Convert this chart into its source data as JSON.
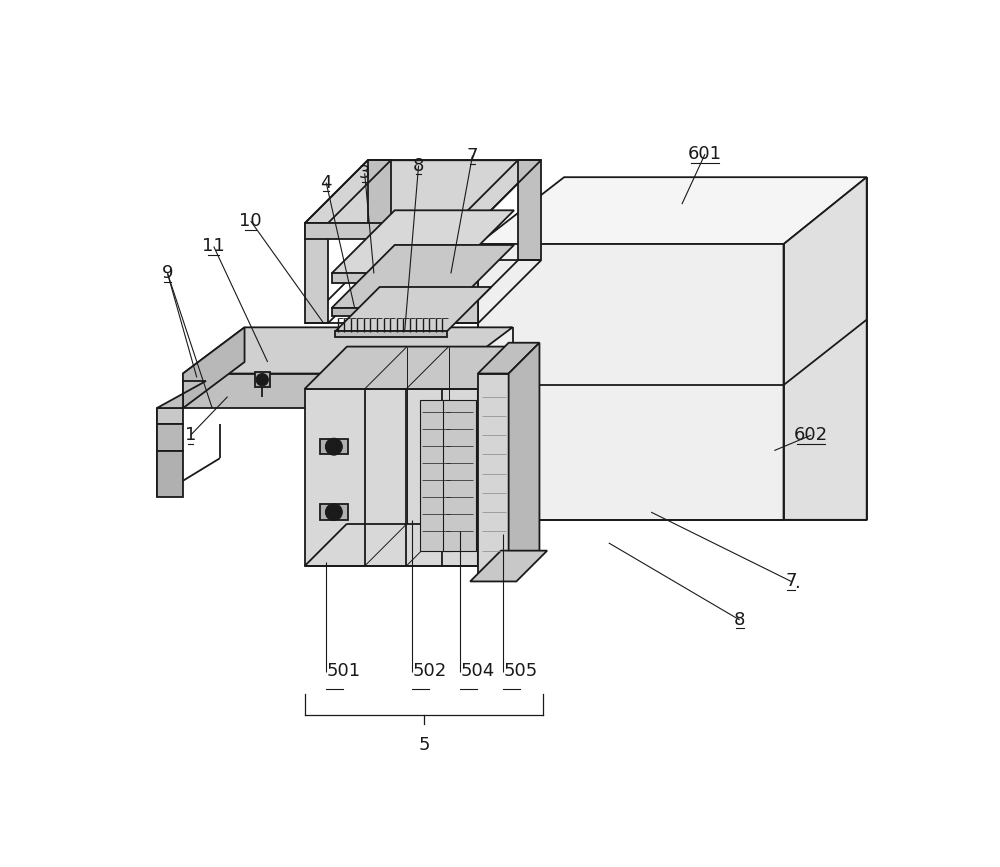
{
  "bg_color": "#ffffff",
  "lc": "#1a1a1a",
  "lw": 1.3,
  "tlw": 0.7,
  "fs": 13,
  "figsize": [
    10.0,
    8.67
  ],
  "dpi": 100
}
